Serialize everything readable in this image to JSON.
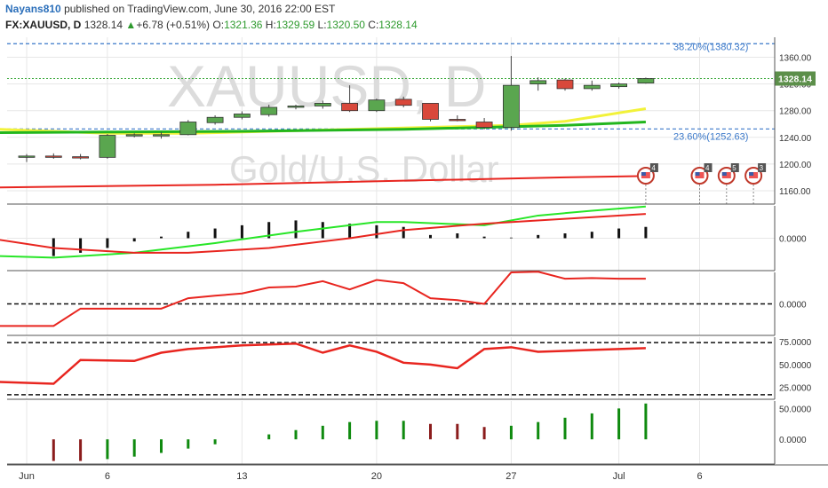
{
  "header": {
    "author": "Nayans810",
    "published": "published on TradingView.com, June 30, 2016 22:00 EST",
    "symbol": "FX:XAUUSD, D",
    "last": "1328.14",
    "change_arrow": "▲",
    "change": "+6.78 (+0.51%)",
    "open_label": "O:",
    "open": "1321.36",
    "high_label": "H:",
    "high": "1329.59",
    "low_label": "L:",
    "low": "1320.50",
    "close_label": "C:",
    "close": "1328.14"
  },
  "watermark": {
    "symbol": "XAUUSD, D",
    "name": "Gold/U.S. Dollar"
  },
  "colors": {
    "up": "#5aa64f",
    "down": "#d9483b",
    "grid": "#e7e7e7",
    "fib": "#3a78c9",
    "ma_red": "#e8251f",
    "ma_yellow": "#f2f23a",
    "ma_green": "#22b61e",
    "osc_green": "#27e627",
    "hist_pos": "#0f8a0f",
    "hist_neg": "#8b1c1c",
    "price_tag": "#5c8f4a"
  },
  "chart_data": [
    {
      "type": "candlestick",
      "title": "FX:XAUUSD, D",
      "ylim": [
        1140,
        1390
      ],
      "y_ticks": [
        "1360.00",
        "1320.00",
        "1280.00",
        "1240.00",
        "1200.00",
        "1160.00"
      ],
      "x_ticks": [
        {
          "label": "Jun",
          "day": 0
        },
        {
          "label": "6",
          "day": 3
        },
        {
          "label": "13",
          "day": 8
        },
        {
          "label": "20",
          "day": 13
        },
        {
          "label": "27",
          "day": 18
        },
        {
          "label": "Jul",
          "day": 22
        },
        {
          "label": "6",
          "day": 25
        }
      ],
      "current_price_label": "1328.14",
      "candles": [
        {
          "day": 0,
          "o": 1211,
          "h": 1215,
          "l": 1203,
          "c": 1212
        },
        {
          "day": 1,
          "o": 1212,
          "h": 1216,
          "l": 1208,
          "c": 1210
        },
        {
          "day": 2,
          "o": 1211,
          "h": 1215,
          "l": 1207,
          "c": 1210
        },
        {
          "day": 3,
          "o": 1210,
          "h": 1245,
          "l": 1208,
          "c": 1243
        },
        {
          "day": 4,
          "o": 1242,
          "h": 1246,
          "l": 1240,
          "c": 1244
        },
        {
          "day": 5,
          "o": 1243,
          "h": 1248,
          "l": 1238,
          "c": 1244
        },
        {
          "day": 6,
          "o": 1244,
          "h": 1266,
          "l": 1243,
          "c": 1263
        },
        {
          "day": 7,
          "o": 1262,
          "h": 1273,
          "l": 1259,
          "c": 1270
        },
        {
          "day": 8,
          "o": 1270,
          "h": 1279,
          "l": 1267,
          "c": 1275
        },
        {
          "day": 9,
          "o": 1274,
          "h": 1289,
          "l": 1271,
          "c": 1285
        },
        {
          "day": 10,
          "o": 1285,
          "h": 1289,
          "l": 1282,
          "c": 1287
        },
        {
          "day": 11,
          "o": 1287,
          "h": 1295,
          "l": 1283,
          "c": 1291
        },
        {
          "day": 12,
          "o": 1291,
          "h": 1318,
          "l": 1278,
          "c": 1280
        },
        {
          "day": 13,
          "o": 1280,
          "h": 1298,
          "l": 1278,
          "c": 1296
        },
        {
          "day": 14,
          "o": 1297,
          "h": 1301,
          "l": 1285,
          "c": 1288
        },
        {
          "day": 15,
          "o": 1291,
          "h": 1291,
          "l": 1264,
          "c": 1267
        },
        {
          "day": 16,
          "o": 1267,
          "h": 1273,
          "l": 1264,
          "c": 1265
        },
        {
          "day": 17,
          "o": 1263,
          "h": 1269,
          "l": 1252,
          "c": 1255
        },
        {
          "day": 18,
          "o": 1255,
          "h": 1362,
          "l": 1250,
          "c": 1318
        },
        {
          "day": 19,
          "o": 1320,
          "h": 1330,
          "l": 1310,
          "c": 1325
        },
        {
          "day": 20,
          "o": 1326,
          "h": 1328,
          "l": 1310,
          "c": 1313
        },
        {
          "day": 21,
          "o": 1313,
          "h": 1325,
          "l": 1310,
          "c": 1318
        },
        {
          "day": 22,
          "o": 1316,
          "h": 1322,
          "l": 1313,
          "c": 1320
        },
        {
          "day": 23,
          "o": 1321.36,
          "h": 1329.59,
          "l": 1320.5,
          "c": 1328.14
        }
      ],
      "fib_levels": [
        {
          "label": "38.20%(1380.32)",
          "value": 1380.32
        },
        {
          "label": "23.60%(1252.63)",
          "value": 1252.63
        }
      ],
      "series": [
        {
          "color": "ma_red",
          "x": [
            -1,
            7,
            14,
            20,
            23
          ],
          "y": [
            1165,
            1169,
            1175,
            1180,
            1182
          ]
        },
        {
          "color": "ma_yellow",
          "x": [
            -1,
            3,
            6,
            10,
            14,
            18,
            20,
            23
          ],
          "y": [
            1252,
            1246,
            1246,
            1250,
            1254,
            1258,
            1264,
            1283
          ]
        },
        {
          "color": "ma_green",
          "x": [
            -1,
            3,
            8,
            14,
            20,
            23
          ],
          "y": [
            1247,
            1248,
            1249,
            1252,
            1258,
            1263
          ]
        }
      ],
      "event_flags": [
        {
          "day": 23,
          "count": "4"
        },
        {
          "day": 25,
          "count": "4"
        },
        {
          "day": 26,
          "count": "5"
        },
        {
          "day": 27,
          "count": "3"
        }
      ]
    },
    {
      "type": "line",
      "ylim": [
        -1,
        1
      ],
      "y_ticks": [
        "0.0000"
      ],
      "bars": [
        -0.55,
        -0.45,
        -0.3,
        -0.1,
        0.05,
        0.2,
        0.3,
        0.4,
        0.5,
        0.55,
        0.5,
        0.45,
        0.4,
        0.35,
        0.1,
        0.15,
        0.05,
        0.02,
        0.1,
        0.15,
        0.2,
        0.3,
        0.35
      ],
      "bar_days": [
        1,
        2,
        3,
        4,
        5,
        6,
        7,
        8,
        9,
        10,
        11,
        12,
        13,
        14,
        15,
        16,
        17,
        18,
        19,
        20,
        21,
        22,
        23
      ],
      "series": [
        {
          "color": "osc_green",
          "x": [
            -1,
            1,
            4,
            7,
            10,
            13,
            14,
            17,
            19,
            21,
            23
          ],
          "y": [
            -0.55,
            -0.6,
            -0.45,
            -0.15,
            0.2,
            0.5,
            0.5,
            0.4,
            0.7,
            0.85,
            0.98
          ]
        },
        {
          "color": "ma_red",
          "x": [
            -1,
            1,
            4,
            6,
            9,
            12,
            14,
            17,
            20,
            23
          ],
          "y": [
            -0.05,
            -0.3,
            -0.45,
            -0.45,
            -0.3,
            0.0,
            0.25,
            0.45,
            0.6,
            0.75
          ]
        }
      ]
    },
    {
      "type": "line",
      "ylim": [
        -1,
        1
      ],
      "y_ticks": [
        "0.0000"
      ],
      "zero_line": 0,
      "series": [
        {
          "color": "ma_red",
          "x": [
            -1,
            1,
            2,
            4,
            5,
            6,
            7,
            8,
            9,
            10,
            11,
            12,
            13,
            14,
            15,
            16,
            17,
            18,
            19,
            20,
            21,
            22,
            23
          ],
          "y": [
            -0.7,
            -0.7,
            -0.15,
            -0.15,
            -0.15,
            0.18,
            0.26,
            0.33,
            0.52,
            0.55,
            0.72,
            0.46,
            0.76,
            0.66,
            0.18,
            0.12,
            0.0,
            1.0,
            1.02,
            0.8,
            0.82,
            0.8,
            0.8
          ]
        }
      ]
    },
    {
      "type": "line",
      "ylim": [
        12,
        80
      ],
      "y_ticks": [
        "75.0000",
        "50.0000",
        "25.0000"
      ],
      "ref_lines": [
        74,
        17
      ],
      "series": [
        {
          "color": "ma_red",
          "x": [
            -1,
            1,
            2,
            4,
            5,
            6,
            7,
            8,
            9,
            10,
            11,
            12,
            13,
            14,
            15,
            16,
            17,
            18,
            19,
            20,
            21,
            22,
            23
          ],
          "y": [
            31,
            29,
            55,
            54,
            63,
            67,
            69,
            71,
            72,
            73,
            63,
            71,
            64,
            52,
            50,
            46,
            67,
            69,
            64,
            65,
            66,
            67,
            68
          ]
        }
      ]
    },
    {
      "type": "bar",
      "ylim": [
        -40,
        62
      ],
      "y_ticks": [
        "50.0000",
        "0.0000"
      ],
      "days": [
        1,
        2,
        3,
        4,
        5,
        6,
        7,
        8,
        9,
        10,
        11,
        12,
        13,
        14,
        15,
        16,
        17,
        18,
        19,
        20,
        21,
        22,
        23
      ],
      "values": [
        -35,
        -35,
        -32,
        -28,
        -22,
        -15,
        -8,
        0,
        8,
        15,
        22,
        28,
        30,
        30,
        25,
        25,
        20,
        22,
        28,
        35,
        42,
        50,
        58
      ]
    }
  ]
}
